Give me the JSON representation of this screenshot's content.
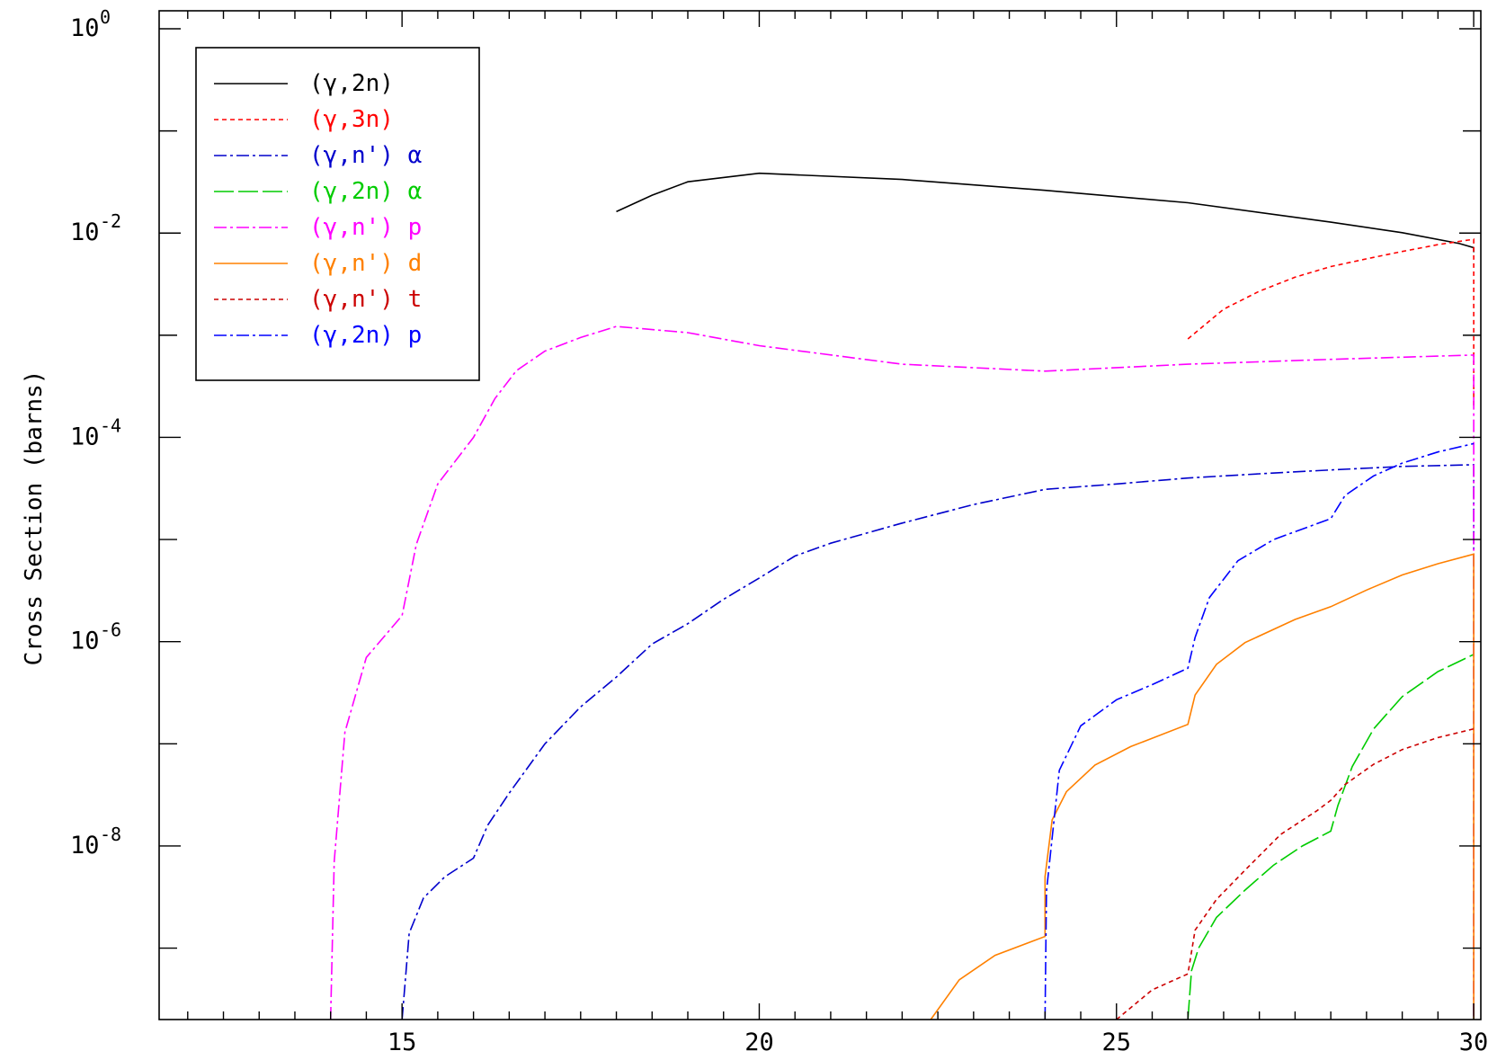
{
  "chart_data": {
    "type": "line",
    "title": "",
    "xlabel": "",
    "ylabel": "Cross Section (barns)",
    "xlim": [
      11.6,
      30.1
    ],
    "ylim": [
      2e-10,
      1.5
    ],
    "yscale": "log",
    "grid": false,
    "legend_position": "top-left",
    "x_ticks": [
      15,
      20,
      25,
      30
    ],
    "x_tick_labels": [
      "15",
      "20",
      "25",
      "30"
    ],
    "y_major_ticks": [
      {
        "value": 1,
        "base": "10",
        "exp": "0"
      },
      {
        "value": 0.01,
        "base": "10",
        "exp": "-2"
      },
      {
        "value": 0.0001,
        "base": "10",
        "exp": "-4"
      },
      {
        "value": 1e-06,
        "base": "10",
        "exp": "-6"
      },
      {
        "value": 1e-08,
        "base": "10",
        "exp": "-8"
      }
    ],
    "series": [
      {
        "name": "(γ,2n)",
        "color": "#000000",
        "dash": "",
        "points": [
          [
            18.0,
            0.0162
          ],
          [
            18.5,
            0.0235
          ],
          [
            19.0,
            0.0318
          ],
          [
            20.0,
            0.0385
          ],
          [
            22.0,
            0.0335
          ],
          [
            24.0,
            0.0262
          ],
          [
            26.0,
            0.0198
          ],
          [
            28.0,
            0.0128
          ],
          [
            29.0,
            0.0101
          ],
          [
            29.8,
            0.0079
          ],
          [
            30.0,
            0.0072
          ],
          [
            30.0,
            0.0065
          ]
        ]
      },
      {
        "name": "(γ,3n)",
        "color": "#ff0000",
        "dash": "5,4",
        "points": [
          [
            26.0,
            0.00092
          ],
          [
            26.5,
            0.0018
          ],
          [
            27.0,
            0.0027
          ],
          [
            27.5,
            0.0037
          ],
          [
            28.0,
            0.0047
          ],
          [
            28.5,
            0.0056
          ],
          [
            29.0,
            0.0066
          ],
          [
            29.5,
            0.0077
          ],
          [
            30.0,
            0.0087
          ],
          [
            30.0,
            0.0002
          ]
        ]
      },
      {
        "name": "(γ,n') α",
        "color": "#0000cc",
        "dash": "14,4,3,4",
        "points": [
          [
            15.0,
            2e-10
          ],
          [
            15.1,
            1.4e-09
          ],
          [
            15.3,
            3.1e-09
          ],
          [
            15.6,
            5e-09
          ],
          [
            16.0,
            7.6e-09
          ],
          [
            16.2,
            1.6e-08
          ],
          [
            16.5,
            3.3e-08
          ],
          [
            17.0,
            1e-07
          ],
          [
            17.5,
            2.3e-07
          ],
          [
            18.0,
            4.5e-07
          ],
          [
            18.5,
            9.5e-07
          ],
          [
            19.0,
            1.5e-06
          ],
          [
            19.5,
            2.6e-06
          ],
          [
            20.0,
            4.2e-06
          ],
          [
            20.5,
            6.9e-06
          ],
          [
            21.0,
            9.2e-06
          ],
          [
            22.0,
            1.45e-05
          ],
          [
            23.0,
            2.2e-05
          ],
          [
            24.0,
            3.1e-05
          ],
          [
            25.0,
            3.5e-05
          ],
          [
            26.0,
            4e-05
          ],
          [
            27.0,
            4.4e-05
          ],
          [
            28.0,
            4.8e-05
          ],
          [
            29.0,
            5.2e-05
          ],
          [
            30.0,
            5.4e-05
          ],
          [
            30.0,
            2e-10
          ]
        ]
      },
      {
        "name": "(γ,2n) α",
        "color": "#00cc00",
        "dash": "22,5",
        "points": [
          [
            26.0,
            2e-10
          ],
          [
            26.05,
            6e-10
          ],
          [
            26.15,
            1e-09
          ],
          [
            26.4,
            2e-09
          ],
          [
            26.8,
            3.7e-09
          ],
          [
            27.2,
            6.5e-09
          ],
          [
            27.6,
            1e-08
          ],
          [
            28.0,
            1.4e-08
          ],
          [
            28.1,
            2.5e-08
          ],
          [
            28.3,
            6e-08
          ],
          [
            28.6,
            1.4e-07
          ],
          [
            29.0,
            2.9e-07
          ],
          [
            29.5,
            5.1e-07
          ],
          [
            30.0,
            7.5e-07
          ]
        ]
      },
      {
        "name": "(γ,n') p",
        "color": "#ff00ff",
        "dash": "14,4,3,4",
        "points": [
          [
            14.0,
            2e-10
          ],
          [
            14.05,
            7e-09
          ],
          [
            14.2,
            1.3e-07
          ],
          [
            14.5,
            7e-07
          ],
          [
            15.0,
            1.8e-06
          ],
          [
            15.2,
            9e-06
          ],
          [
            15.5,
            3.5e-05
          ],
          [
            16.0,
            0.0001
          ],
          [
            16.3,
            0.00024
          ],
          [
            16.6,
            0.00045
          ],
          [
            17.0,
            0.0007
          ],
          [
            17.5,
            0.00095
          ],
          [
            18.0,
            0.00122
          ],
          [
            19.0,
            0.00106
          ],
          [
            20.0,
            0.00079
          ],
          [
            22.0,
            0.00052
          ],
          [
            24.0,
            0.000445
          ],
          [
            26.0,
            0.00052
          ],
          [
            28.0,
            0.00058
          ],
          [
            30.0,
            0.00064
          ],
          [
            30.0,
            2e-10
          ]
        ]
      },
      {
        "name": "(γ,n') d",
        "color": "#ff8000",
        "dash": "",
        "points": [
          [
            22.4,
            2e-10
          ],
          [
            22.8,
            4.9e-10
          ],
          [
            23.3,
            8.5e-10
          ],
          [
            24.0,
            1.3e-09
          ],
          [
            24.0,
            5e-09
          ],
          [
            24.1,
            1.8e-08
          ],
          [
            24.3,
            3.4e-08
          ],
          [
            24.7,
            6.2e-08
          ],
          [
            25.2,
            9.4e-08
          ],
          [
            26.0,
            1.55e-07
          ],
          [
            26.1,
            3e-07
          ],
          [
            26.4,
            6e-07
          ],
          [
            26.8,
            9.8e-07
          ],
          [
            27.5,
            1.65e-06
          ],
          [
            28.0,
            2.2e-06
          ],
          [
            28.5,
            3.2e-06
          ],
          [
            29.0,
            4.5e-06
          ],
          [
            29.5,
            5.8e-06
          ],
          [
            30.0,
            7.2e-06
          ],
          [
            30.0,
            2e-10
          ]
        ]
      },
      {
        "name": "(γ,n') t",
        "color": "#cc0000",
        "dash": "5,4",
        "points": [
          [
            25.0,
            2e-10
          ],
          [
            25.5,
            3.9e-10
          ],
          [
            26.0,
            5.6e-10
          ],
          [
            26.1,
            1.5e-09
          ],
          [
            26.4,
            3e-09
          ],
          [
            26.8,
            5.8e-09
          ],
          [
            27.3,
            1.3e-08
          ],
          [
            27.8,
            2.2e-08
          ],
          [
            28.0,
            2.8e-08
          ],
          [
            28.2,
            4e-08
          ],
          [
            28.6,
            6.3e-08
          ],
          [
            29.0,
            8.8e-08
          ],
          [
            29.5,
            1.15e-07
          ],
          [
            30.0,
            1.4e-07
          ]
        ]
      },
      {
        "name": "(γ,2n) p",
        "color": "#0000ff",
        "dash": "14,4,3,4",
        "points": [
          [
            24.0,
            2e-10
          ],
          [
            24.02,
            3.6e-09
          ],
          [
            24.2,
            5.5e-08
          ],
          [
            24.5,
            1.5e-07
          ],
          [
            25.0,
            2.7e-07
          ],
          [
            25.5,
            3.8e-07
          ],
          [
            26.0,
            5.5e-07
          ],
          [
            26.1,
            1.1e-06
          ],
          [
            26.3,
            2.7e-06
          ],
          [
            26.7,
            6.2e-06
          ],
          [
            27.2,
            1e-05
          ],
          [
            28.0,
            1.6e-05
          ],
          [
            28.2,
            2.7e-05
          ],
          [
            28.6,
            4.2e-05
          ],
          [
            29.0,
            5.6e-05
          ],
          [
            29.5,
            7.2e-05
          ],
          [
            30.0,
            8.7e-05
          ]
        ]
      }
    ]
  }
}
